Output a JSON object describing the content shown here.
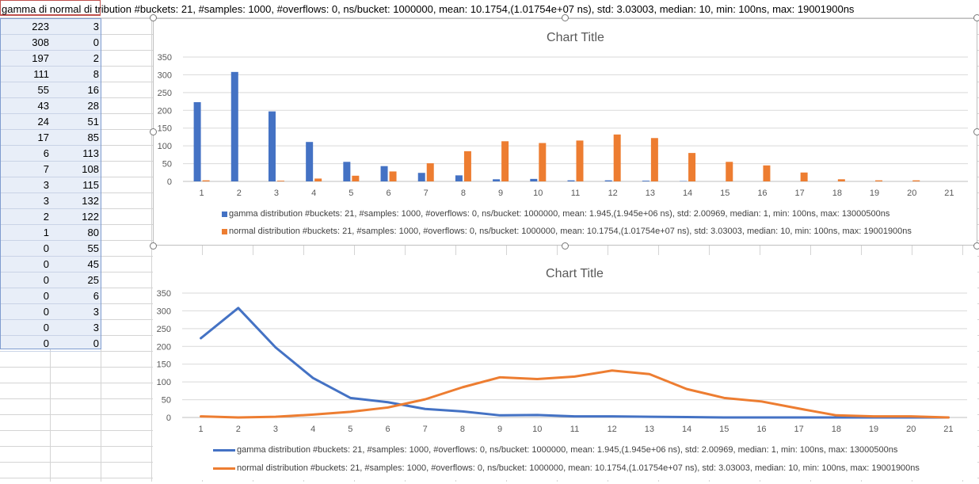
{
  "spreadsheet": {
    "header_text": "gamma di normal di tribution #buckets: 21, #samples: 1000, #overflows: 0, ns/bucket: 1000000, mean: 10.1754,(1.01754e+07 ns), std: 3.03003, median: 10, min: 100ns, max: 19001900ns",
    "col_a": [
      223,
      308,
      197,
      111,
      55,
      43,
      24,
      17,
      6,
      7,
      3,
      3,
      2,
      1,
      0,
      0,
      0,
      0,
      0,
      0,
      0
    ],
    "col_b": [
      3,
      0,
      2,
      8,
      16,
      28,
      51,
      85,
      113,
      108,
      115,
      132,
      122,
      80,
      55,
      45,
      25,
      6,
      3,
      3,
      0
    ]
  },
  "chart_data": [
    {
      "type": "bar",
      "title": "Chart Title",
      "categories": [
        "1",
        "2",
        "3",
        "4",
        "5",
        "6",
        "7",
        "8",
        "9",
        "10",
        "11",
        "12",
        "13",
        "14",
        "15",
        "16",
        "17",
        "18",
        "19",
        "20",
        "21"
      ],
      "y_ticks": [
        "0",
        "50",
        "100",
        "150",
        "200",
        "250",
        "300",
        "350"
      ],
      "ylim": [
        0,
        350
      ],
      "grid": true,
      "legend_position": "bottom",
      "series": [
        {
          "name": "gamma distribution #buckets: 21, #samples: 1000, #overflows: 0, ns/bucket: 1000000, mean: 1.945,(1.945e+06 ns), std: 2.00969, median: 1, min: 100ns, max: 13000500ns",
          "color": "#4472c4",
          "values": [
            223,
            308,
            197,
            111,
            55,
            43,
            24,
            17,
            6,
            7,
            3,
            3,
            2,
            1,
            0,
            0,
            0,
            0,
            0,
            0,
            0
          ]
        },
        {
          "name": "normal distribution #buckets: 21, #samples: 1000, #overflows: 0, ns/bucket: 1000000, mean: 10.1754,(1.01754e+07 ns), std: 3.03003, median: 10, min: 100ns, max: 19001900ns",
          "color": "#ed7d31",
          "values": [
            3,
            0,
            2,
            8,
            16,
            28,
            51,
            85,
            113,
            108,
            115,
            132,
            122,
            80,
            55,
            45,
            25,
            6,
            3,
            3,
            0
          ]
        }
      ]
    },
    {
      "type": "line",
      "title": "Chart Title",
      "categories": [
        "1",
        "2",
        "3",
        "4",
        "5",
        "6",
        "7",
        "8",
        "9",
        "10",
        "11",
        "12",
        "13",
        "14",
        "15",
        "16",
        "17",
        "18",
        "19",
        "20",
        "21"
      ],
      "y_ticks": [
        "0",
        "50",
        "100",
        "150",
        "200",
        "250",
        "300",
        "350"
      ],
      "ylim": [
        0,
        350
      ],
      "grid": true,
      "legend_position": "bottom",
      "series": [
        {
          "name": "gamma distribution #buckets: 21, #samples: 1000, #overflows: 0, ns/bucket: 1000000, mean: 1.945,(1.945e+06 ns), std: 2.00969, median: 1, min: 100ns, max: 13000500ns",
          "color": "#4472c4",
          "values": [
            223,
            308,
            197,
            111,
            55,
            43,
            24,
            17,
            6,
            7,
            3,
            3,
            2,
            1,
            0,
            0,
            0,
            0,
            0,
            0,
            0
          ]
        },
        {
          "name": "normal distribution #buckets: 21, #samples: 1000, #overflows: 0, ns/bucket: 1000000, mean: 10.1754,(1.01754e+07 ns), std: 3.03003, median: 10, min: 100ns, max: 19001900ns",
          "color": "#ed7d31",
          "values": [
            3,
            0,
            2,
            8,
            16,
            28,
            51,
            85,
            113,
            108,
            115,
            132,
            122,
            80,
            55,
            45,
            25,
            6,
            3,
            3,
            0
          ]
        }
      ]
    }
  ]
}
